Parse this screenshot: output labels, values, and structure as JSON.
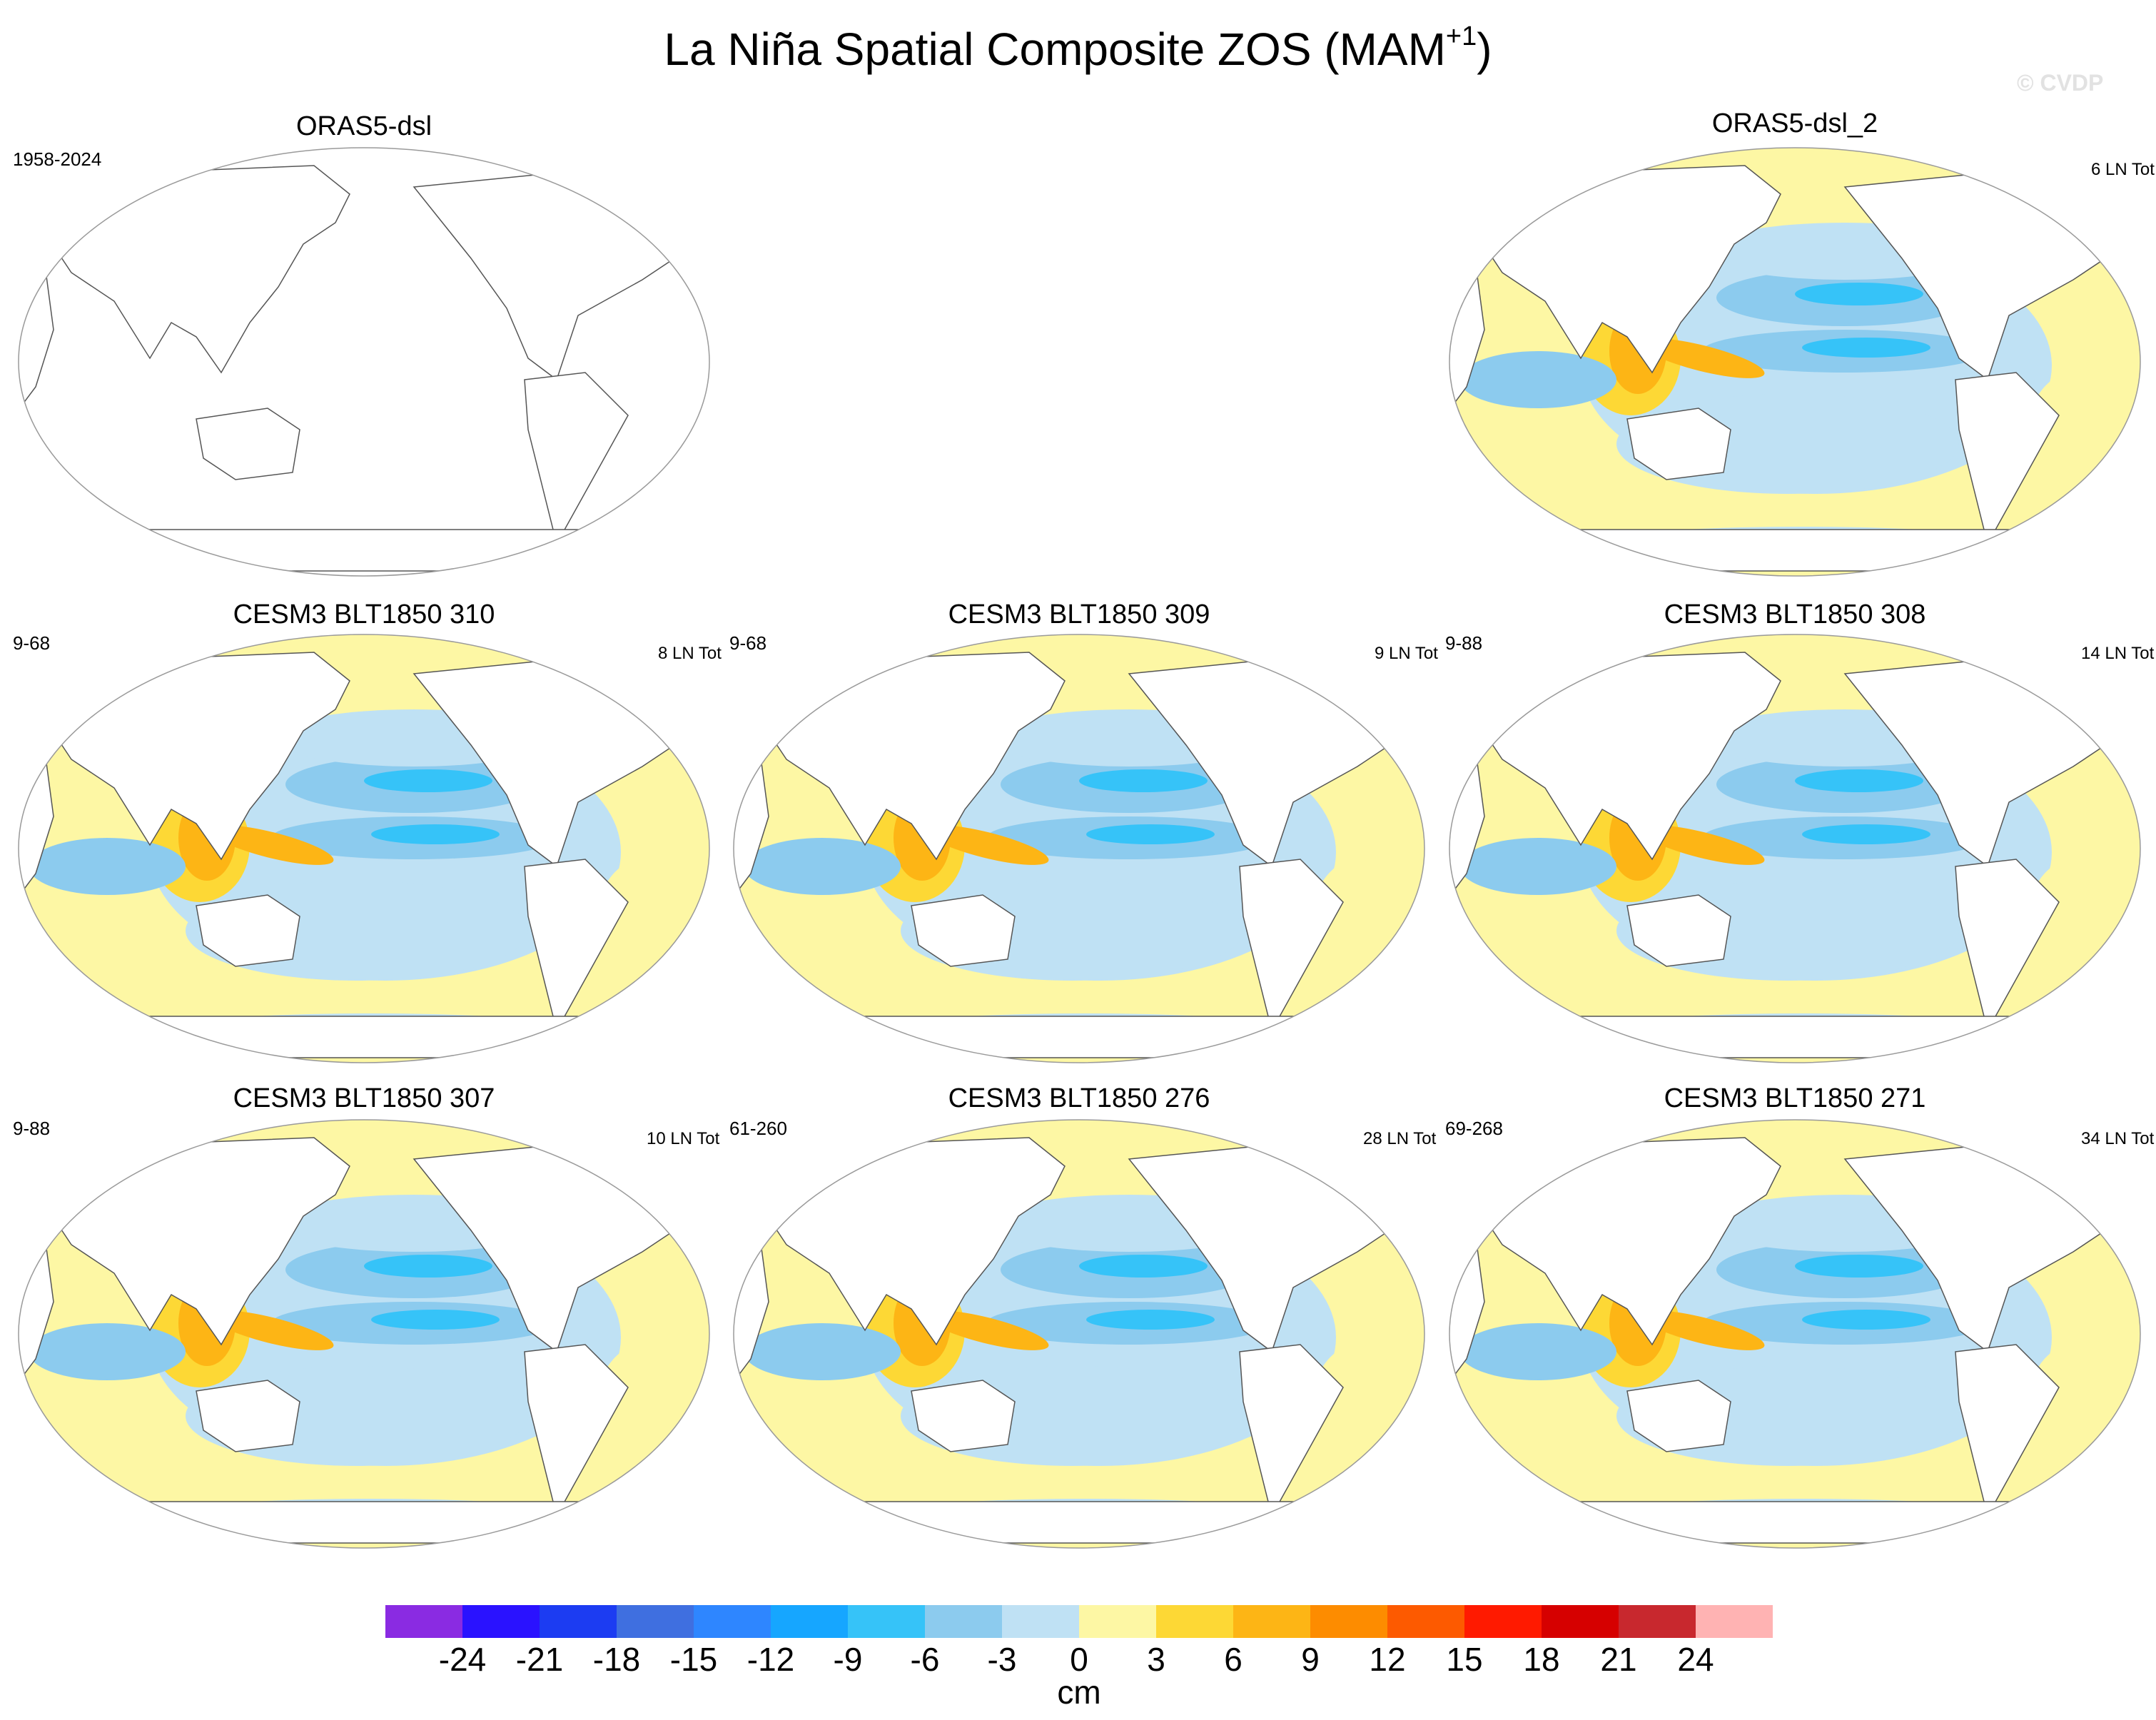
{
  "title": {
    "main": "La Niña Spatial Composite ZOS (MAM",
    "superscript": "+1",
    "close": ")"
  },
  "watermark": "© CVDP",
  "panels": [
    {
      "title": "ORAS5-dsl",
      "left_label": "1958-2024",
      "right_label": "",
      "filled": false
    },
    {
      "title": "ORAS5-dsl_2",
      "left_label": "",
      "right_label": "6 LN Tot",
      "filled": true
    },
    {
      "title": "CESM3 BLT1850 310",
      "left_label": "9-68",
      "right_label": "8 LN Tot",
      "filled": true
    },
    {
      "title": "CESM3 BLT1850 309",
      "left_label": "9-68",
      "right_label": "9 LN Tot",
      "filled": true
    },
    {
      "title": "CESM3 BLT1850 308",
      "left_label": "9-88",
      "right_label": "14 LN Tot",
      "filled": true
    },
    {
      "title": "CESM3 BLT1850 307",
      "left_label": "9-88",
      "right_label": "10 LN Tot",
      "filled": true
    },
    {
      "title": "CESM3 BLT1850 276",
      "left_label": "61-260",
      "right_label": "28 LN Tot",
      "filled": true
    },
    {
      "title": "CESM3 BLT1850 271",
      "left_label": "69-268",
      "right_label": "34 LN Tot",
      "filled": true
    }
  ],
  "colorbar": {
    "colors": [
      "#8a2be2",
      "#2a12ff",
      "#1c3cf2",
      "#3f6fe0",
      "#2e86ff",
      "#16a6ff",
      "#36c3f8",
      "#8ccbee",
      "#bfe1f4",
      "#fdf7a4",
      "#fdd835",
      "#fdb515",
      "#fd8c00",
      "#fd5a00",
      "#ff1a00",
      "#d60000",
      "#c8282e",
      "#ffb3b3"
    ],
    "ticks": [
      "-24",
      "-21",
      "-18",
      "-15",
      "-12",
      "-9",
      "-6",
      "-3",
      "0",
      "3",
      "6",
      "9",
      "12",
      "15",
      "18",
      "21",
      "24"
    ],
    "units": "cm"
  },
  "colors": {
    "ocean_neutral": "#fdf7a4",
    "ocean_light_blue": "#bfe1f4",
    "ocean_blue": "#8ccbee",
    "ocean_deep_blue": "#36c3f8",
    "warm_yellow": "#fdd835",
    "warm_orange": "#fdb515",
    "hot_orange": "#fd8c00",
    "land": "#ffffff"
  }
}
